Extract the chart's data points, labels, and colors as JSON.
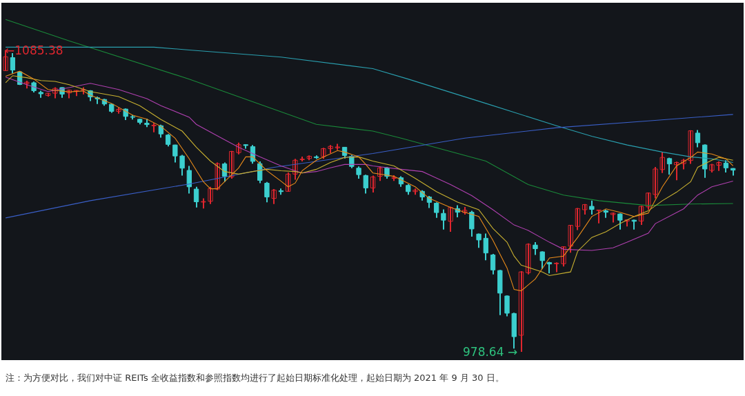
{
  "chart_data": {
    "type": "candlestick",
    "categories": [
      null,
      null,
      null,
      null,
      null,
      null,
      null,
      null,
      null,
      null,
      null,
      null,
      null,
      null,
      null,
      null,
      null,
      null,
      null,
      null,
      null,
      null,
      null,
      null,
      null,
      null,
      null,
      null,
      null,
      null,
      null,
      null,
      null,
      null,
      null,
      null,
      null,
      null,
      null,
      null,
      null,
      null,
      null,
      null,
      null,
      null,
      null,
      null,
      null,
      null,
      null,
      null,
      null,
      null,
      null,
      null,
      null,
      null,
      null,
      null,
      null,
      null,
      null,
      null,
      null,
      null,
      null,
      null,
      null,
      null,
      null,
      null,
      null,
      null,
      null,
      null,
      null,
      null,
      null,
      null,
      null,
      null,
      null,
      null,
      null,
      null,
      null,
      null,
      null,
      null,
      null,
      null,
      null,
      null,
      null,
      null,
      null,
      null,
      null,
      null,
      null,
      null,
      null,
      null
    ],
    "tick_labels": false,
    "ylim": [
      975.7,
      1102.1
    ],
    "series": [
      {
        "type": "line",
        "color": "#1a8a3a",
        "values": [
          1096.2,
          null,
          null,
          null,
          null,
          null,
          null,
          null,
          null,
          1088.6,
          null,
          null,
          null,
          null,
          null,
          null,
          null,
          null,
          null,
          null,
          null,
          null,
          null,
          null,
          null,
          null,
          1075.1,
          null,
          null,
          null,
          null,
          null,
          null,
          null,
          null,
          null,
          null,
          null,
          null,
          null,
          null,
          null,
          null,
          null,
          1059.1,
          null,
          null,
          null,
          null,
          null,
          null,
          null,
          1056.7,
          null,
          null,
          null,
          1054.2,
          null,
          null,
          null,
          null,
          null,
          null,
          null,
          null,
          null,
          null,
          null,
          1046.1,
          null,
          null,
          null,
          null,
          null,
          1037.8,
          null,
          null,
          null,
          null,
          1034.1,
          null,
          null,
          null,
          null,
          1032.1,
          null,
          null,
          null,
          null,
          null,
          null,
          1030.4,
          null,
          null,
          null,
          null,
          null,
          1030.9,
          null,
          null,
          null,
          null,
          null,
          1031.1
        ]
      },
      {
        "type": "line",
        "color": "#2aa0b0",
        "values": [
          1086.4,
          null,
          null,
          null,
          null,
          null,
          null,
          null,
          null,
          null,
          null,
          null,
          null,
          null,
          null,
          null,
          null,
          null,
          null,
          null,
          null,
          1086.4,
          null,
          null,
          null,
          null,
          1085.4,
          null,
          null,
          null,
          null,
          null,
          null,
          null,
          null,
          null,
          null,
          null,
          null,
          1082.9,
          null,
          null,
          null,
          null,
          null,
          null,
          null,
          null,
          null,
          null,
          null,
          null,
          1078.8,
          null,
          null,
          null,
          null,
          1075.1,
          null,
          null,
          null,
          null,
          null,
          null,
          null,
          null,
          null,
          null,
          1066.5,
          null,
          null,
          null,
          null,
          null,
          null,
          null,
          null,
          null,
          1058.6,
          null,
          null,
          null,
          null,
          1054.9,
          null,
          null,
          null,
          null,
          1051.8,
          null,
          null,
          null,
          null,
          1049.3,
          null,
          null,
          null,
          1047.6,
          null,
          null,
          1046.9,
          null,
          null,
          1045.6
        ]
      },
      {
        "type": "line",
        "color": "#3a5fc8",
        "values": [
          1026.0,
          null,
          null,
          null,
          null,
          null,
          null,
          null,
          null,
          null,
          null,
          null,
          1032.1,
          null,
          null,
          null,
          null,
          null,
          null,
          null,
          null,
          null,
          null,
          null,
          null,
          null,
          1038.0,
          null,
          null,
          null,
          null,
          null,
          null,
          null,
          null,
          null,
          null,
          null,
          1043.9,
          null,
          null,
          null,
          null,
          null,
          null,
          null,
          null,
          null,
          null,
          null,
          null,
          null,
          1048.8,
          null,
          null,
          null,
          null,
          null,
          null,
          null,
          null,
          null,
          null,
          null,
          null,
          1054.2,
          null,
          null,
          null,
          null,
          null,
          null,
          null,
          null,
          null,
          null,
          null,
          null,
          1057.9,
          null,
          null,
          null,
          null,
          null,
          null,
          null,
          null,
          null,
          null,
          null,
          null,
          1060.3,
          null,
          null,
          null,
          null,
          null,
          null,
          null,
          null,
          null,
          null,
          null,
          1062.6
        ]
      },
      {
        "type": "line",
        "color": "#b040b0",
        "values": [
          1075.8,
          null,
          null,
          1073.1,
          null,
          null,
          1070.7,
          null,
          null,
          1072.1,
          null,
          null,
          1073.6,
          null,
          null,
          null,
          1071.4,
          null,
          null,
          null,
          1068.2,
          null,
          1065.7,
          null,
          null,
          null,
          1061.6,
          1059.1,
          null,
          null,
          1055.0,
          null,
          null,
          1051.0,
          null,
          null,
          1047.6,
          null,
          null,
          1044.4,
          null,
          1042.7,
          1041.9,
          null,
          1042.4,
          null,
          1043.7,
          null,
          1044.9,
          null,
          null,
          1044.9,
          1044.4,
          null,
          null,
          null,
          1043.2,
          null,
          null,
          1042.4,
          null,
          null,
          null,
          1037.8,
          null,
          null,
          1033.9,
          null,
          null,
          1028.9,
          null,
          null,
          1023.5,
          null,
          1021.6,
          null,
          null,
          1017.4,
          null,
          1014.9,
          null,
          null,
          null,
          1014.5,
          null,
          null,
          1015.4,
          null,
          1017.4,
          null,
          null,
          1020.6,
          1024.0,
          null,
          null,
          null,
          1029.2,
          null,
          1034.1,
          null,
          1037.0,
          null,
          null,
          1039.0
        ]
      },
      {
        "type": "line",
        "color": "#c8b030",
        "values": [
          1073.8,
          1076.3,
          null,
          1075.6,
          null,
          1074.6,
          null,
          1074.3,
          null,
          1073.1,
          null,
          null,
          1070.7,
          null,
          null,
          null,
          1068.9,
          null,
          null,
          1065.7,
          null,
          null,
          1060.8,
          null,
          null,
          1056.7,
          null,
          1051.0,
          null,
          1046.1,
          null,
          1042.4,
          null,
          1041.5,
          null,
          1042.4,
          null,
          1043.2,
          null,
          1042.7,
          null,
          1042.4,
          1041.9,
          null,
          1043.2,
          null,
          1045.6,
          null,
          1047.4,
          null,
          1047.6,
          null,
          1046.1,
          null,
          null,
          1044.4,
          null,
          null,
          1040.0,
          null,
          null,
          1035.3,
          null,
          null,
          1031.6,
          null,
          null,
          1028.9,
          null,
          1022.3,
          null,
          1017.4,
          1012.5,
          1009.3,
          null,
          null,
          1006.9,
          1005.6,
          null,
          null,
          1006.9,
          1014.2,
          null,
          1019.1,
          null,
          1021.1,
          null,
          1024.0,
          null,
          1026.5,
          null,
          1028.5,
          null,
          1032.1,
          null,
          1035.1,
          null,
          1038.8,
          1043.9,
          null,
          1046.4,
          1047.4,
          null,
          1046.4
        ]
      },
      {
        "type": "line",
        "color": "#e88a1a",
        "values": [
          1076.1,
          null,
          1077.9,
          null,
          1075.1,
          null,
          1071.4,
          null,
          null,
          1070.6,
          null,
          1070.9,
          1069.4,
          null,
          null,
          1066.5,
          null,
          null,
          1062.3,
          null,
          1060.9,
          null,
          1058.4,
          null,
          1054.2,
          null,
          1046.9,
          null,
          1038.8,
          1036.3,
          1036.3,
          1038.8,
          null,
          1043.7,
          1047.6,
          1047.6,
          null,
          1042.7,
          null,
          1039.0,
          1037.0,
          1038.3,
          1042.7,
          null,
          1046.4,
          null,
          null,
          1049.8,
          1049.3,
          null,
          1047.6,
          1044.9,
          1041.9,
          null,
          null,
          1040.7,
          null,
          null,
          1037.0,
          null,
          1032.9,
          null,
          null,
          1029.7,
          null,
          1028.0,
          null,
          1026.5,
          null,
          1018.1,
          null,
          1008.3,
          1000.7,
          1000.2,
          null,
          1004.4,
          null,
          1011.8,
          null,
          1012.5,
          null,
          1019.1,
          null,
          1026.5,
          null,
          1029.2,
          null,
          1028.0,
          null,
          1026.5,
          null,
          1027.7,
          null,
          1037.0,
          null,
          1044.4,
          null,
          1047.4,
          1049.3,
          null,
          1048.6,
          null,
          1046.9,
          1044.4
        ]
      },
      {
        "colors": [
          "#e0262e",
          "#3ccfcf",
          "#3ccfcf",
          "#e0262e",
          "#3ccfcf",
          "#3ccfcf",
          "#e0262e",
          "#e0262e",
          "#3ccfcf",
          "#e0262e",
          "#e0262e",
          "#e0262e",
          "#3ccfcf",
          "#3ccfcf",
          "#3ccfcf",
          "#3ccfcf",
          "#e0262e",
          "#3ccfcf",
          "#3ccfcf",
          "#3ccfcf",
          "#3ccfcf",
          "#e0262e",
          "#3ccfcf",
          "#3ccfcf",
          "#3ccfcf",
          "#3ccfcf",
          "#3ccfcf",
          "#3ccfcf",
          "#e0262e",
          "#e0262e",
          "#e0262e",
          "#3ccfcf",
          "#e0262e",
          "#e0262e",
          "#3ccfcf",
          "#3ccfcf",
          "#3ccfcf",
          "#3ccfcf",
          "#e0262e",
          "#3ccfcf",
          "#e0262e",
          "#e0262e",
          "#e0262e",
          "#e0262e",
          "#3ccfcf",
          "#e0262e",
          "#e0262e",
          "#e0262e",
          "#3ccfcf",
          "#3ccfcf",
          "#3ccfcf",
          "#3ccfcf",
          "#e0262e",
          "#e0262e",
          "#3ccfcf",
          "#e0262e",
          "#3ccfcf",
          "#3ccfcf",
          "#e0262e",
          "#3ccfcf",
          "#3ccfcf",
          "#3ccfcf",
          "#3ccfcf",
          "#e0262e",
          "#3ccfcf",
          "#e0262e",
          "#3ccfcf",
          "#3ccfcf",
          "#3ccfcf",
          "#3ccfcf",
          "#3ccfcf",
          "#3ccfcf",
          "#3ccfcf",
          "#e0262e",
          "#e0262e",
          "#3ccfcf",
          "#3ccfcf",
          "#3ccfcf",
          "#e0262e",
          "#e0262e",
          "#e0262e",
          "#e0262e",
          "#e0262e",
          "#3ccfcf",
          "#e0262e",
          "#3ccfcf",
          "#e0262e",
          "#3ccfcf",
          "#e0262e",
          "#3ccfcf",
          "#e0262e",
          "#e0262e",
          "#e0262e",
          "#e0262e",
          "#3ccfcf",
          "#e0262e",
          "#e0262e",
          "#e0262e",
          "#3ccfcf",
          "#3ccfcf",
          "#e0262e",
          "#e0262e",
          "#3ccfcf",
          "#3ccfcf"
        ],
        "ohlc": [
          [
            1078.1,
            1085.38,
            1078.1,
            1083.0
          ],
          [
            1082.7,
            1084.3,
            1077.1,
            1078.3
          ],
          [
            1077.7,
            1077.9,
            1073.0,
            1073.2
          ],
          [
            1073.5,
            1074.5,
            1071.8,
            1074.0
          ],
          [
            1073.8,
            1074.2,
            1070.4,
            1071.0
          ],
          [
            1070.4,
            1071.0,
            1068.5,
            1069.9
          ],
          [
            1069.3,
            1070.2,
            1068.9,
            1070.1
          ],
          [
            1070.1,
            1072.2,
            1068.3,
            1071.8
          ],
          [
            1072.1,
            1072.2,
            1068.5,
            1069.8
          ],
          [
            1070.2,
            1071.4,
            1068.3,
            1071.2
          ],
          [
            1070.8,
            1071.2,
            1069.1,
            1071.1
          ],
          [
            1071.2,
            1072.2,
            1069.7,
            1071.4
          ],
          [
            1071.0,
            1071.2,
            1067.3,
            1068.8
          ],
          [
            1068.5,
            1068.9,
            1066.3,
            1068.1
          ],
          [
            1067.9,
            1068.1,
            1065.7,
            1066.3
          ],
          [
            1066.2,
            1066.5,
            1063.2,
            1063.7
          ],
          [
            1063.7,
            1065.0,
            1062.9,
            1064.4
          ],
          [
            1064.5,
            1064.7,
            1060.6,
            1061.9
          ],
          [
            1061.8,
            1062.4,
            1060.8,
            1061.6
          ],
          [
            1060.9,
            1061.1,
            1059.1,
            1059.8
          ],
          [
            1059.5,
            1061.1,
            1058.1,
            1059.0
          ],
          [
            1058.6,
            1059.6,
            1056.3,
            1058.8
          ],
          [
            1058.6,
            1059.0,
            1054.4,
            1055.7
          ],
          [
            1055.3,
            1055.7,
            1051.3,
            1052.0
          ],
          [
            1051.8,
            1051.9,
            1045.6,
            1047.9
          ],
          [
            1047.9,
            1048.3,
            1041.0,
            1043.6
          ],
          [
            1042.8,
            1044.4,
            1034.6,
            1037.0
          ],
          [
            1036.2,
            1037.0,
            1029.7,
            1031.7
          ],
          [
            1031.6,
            1032.9,
            1029.3,
            1031.8
          ],
          [
            1031.9,
            1037.0,
            1030.9,
            1036.4
          ],
          [
            1036.2,
            1045.6,
            1035.8,
            1045.2
          ],
          [
            1045.1,
            1045.6,
            1038.8,
            1040.7
          ],
          [
            1040.5,
            1049.7,
            1039.9,
            1049.5
          ],
          [
            1049.1,
            1052.6,
            1048.5,
            1051.9
          ],
          [
            1051.9,
            1052.0,
            1050.5,
            1051.6
          ],
          [
            1051.2,
            1051.8,
            1045.2,
            1046.0
          ],
          [
            1045.2,
            1046.0,
            1038.3,
            1039.3
          ],
          [
            1038.3,
            1038.7,
            1031.5,
            1033.4
          ],
          [
            1032.9,
            1036.2,
            1030.9,
            1035.8
          ],
          [
            1035.6,
            1036.4,
            1034.2,
            1035.3
          ],
          [
            1035.4,
            1042.1,
            1035.3,
            1041.5
          ],
          [
            1041.5,
            1046.9,
            1039.5,
            1046.4
          ],
          [
            1046.6,
            1047.7,
            1046.0,
            1046.8
          ],
          [
            1047.0,
            1048.1,
            1046.4,
            1047.8
          ],
          [
            1047.6,
            1048.1,
            1046.9,
            1047.3
          ],
          [
            1047.7,
            1050.8,
            1046.9,
            1050.5
          ],
          [
            1050.5,
            1051.8,
            1048.9,
            1051.3
          ],
          [
            1050.8,
            1052.2,
            1050.0,
            1051.1
          ],
          [
            1051.0,
            1051.1,
            1047.0,
            1048.1
          ],
          [
            1047.8,
            1048.3,
            1043.6,
            1044.2
          ],
          [
            1043.6,
            1044.2,
            1039.9,
            1041.3
          ],
          [
            1041.0,
            1041.3,
            1034.6,
            1036.6
          ],
          [
            1036.6,
            1041.0,
            1035.0,
            1040.5
          ],
          [
            1040.7,
            1044.2,
            1039.1,
            1043.7
          ],
          [
            1043.7,
            1044.0,
            1039.9,
            1040.7
          ],
          [
            1040.0,
            1041.1,
            1039.1,
            1040.3
          ],
          [
            1040.2,
            1040.7,
            1037.0,
            1038.0
          ],
          [
            1037.5,
            1037.9,
            1034.2,
            1035.3
          ],
          [
            1035.3,
            1036.4,
            1034.2,
            1035.8
          ],
          [
            1035.4,
            1035.8,
            1032.1,
            1033.4
          ],
          [
            1033.4,
            1033.8,
            1029.5,
            1031.5
          ],
          [
            1031.2,
            1031.5,
            1026.0,
            1027.9
          ],
          [
            1027.6,
            1029.0,
            1021.9,
            1025.2
          ],
          [
            1024.8,
            1030.0,
            1021.1,
            1029.7
          ],
          [
            1029.3,
            1030.5,
            1026.2,
            1028.0
          ],
          [
            1027.9,
            1029.9,
            1027.2,
            1028.7
          ],
          [
            1028.0,
            1028.5,
            1019.4,
            1022.1
          ],
          [
            1020.3,
            1020.5,
            1015.4,
            1018.2
          ],
          [
            1018.8,
            1020.5,
            1011.0,
            1013.6
          ],
          [
            1012.9,
            1013.3,
            1006.0,
            1007.6
          ],
          [
            1007.4,
            1007.6,
            991.6,
            999.4
          ],
          [
            998.4,
            998.6,
            991.2,
            992.3
          ],
          [
            992.2,
            992.5,
            979.8,
            984.0
          ],
          [
            984.5,
            1007.2,
            978.64,
            1006.9
          ],
          [
            1006.6,
            1017.0,
            1006.0,
            1016.7
          ],
          [
            1016.4,
            1017.4,
            1012.9,
            1015.1
          ],
          [
            1014.0,
            1014.2,
            1008.0,
            1010.9
          ],
          [
            1010.2,
            1010.5,
            1006.4,
            1009.7
          ],
          [
            1009.8,
            1010.3,
            1006.8,
            1010.0
          ],
          [
            1009.8,
            1015.9,
            1008.8,
            1015.8
          ],
          [
            1016.0,
            1023.5,
            1013.7,
            1023.4
          ],
          [
            1023.0,
            1029.5,
            1021.7,
            1029.3
          ],
          [
            1028.9,
            1030.9,
            1027.2,
            1030.7
          ],
          [
            1030.1,
            1032.1,
            1027.2,
            1029.0
          ],
          [
            1028.6,
            1028.9,
            1024.1,
            1028.8
          ],
          [
            1028.5,
            1028.9,
            1026.0,
            1028.0
          ],
          [
            1027.2,
            1027.9,
            1024.4,
            1027.7
          ],
          [
            1027.4,
            1027.6,
            1021.9,
            1025.2
          ],
          [
            1024.9,
            1025.5,
            1023.0,
            1025.3
          ],
          [
            1025.2,
            1025.4,
            1021.9,
            1024.8
          ],
          [
            1024.9,
            1030.3,
            1023.5,
            1030.1
          ],
          [
            1029.9,
            1035.0,
            1028.9,
            1034.8
          ],
          [
            1034.3,
            1044.0,
            1032.9,
            1043.3
          ],
          [
            1043.1,
            1049.3,
            1041.9,
            1047.4
          ],
          [
            1047.0,
            1047.3,
            1041.3,
            1045.1
          ],
          [
            1044.8,
            1045.9,
            1039.3,
            1045.6
          ],
          [
            1045.2,
            1046.9,
            1043.2,
            1046.4
          ],
          [
            1046.3,
            1057.0,
            1045.1,
            1056.8
          ],
          [
            1056.0,
            1057.1,
            1051.0,
            1052.6
          ],
          [
            1051.8,
            1052.0,
            1040.2,
            1043.3
          ],
          [
            1042.8,
            1045.1,
            1042.1,
            1044.8
          ],
          [
            1044.6,
            1046.0,
            1042.6,
            1045.6
          ],
          [
            1045.4,
            1046.4,
            1042.1,
            1043.7
          ],
          [
            1043.5,
            1043.6,
            1041.0,
            1042.9
          ]
        ]
      }
    ],
    "annotations": [
      {
        "text": "←1085.38",
        "y": 1085.38
      },
      "978.64 →",
      "注：为方便对比，我们对中证 REITs 全收益指数和参照指数均进行了起始日期标准化处理，起始日期为 2021 年 9 月 30 日。"
    ]
  }
}
